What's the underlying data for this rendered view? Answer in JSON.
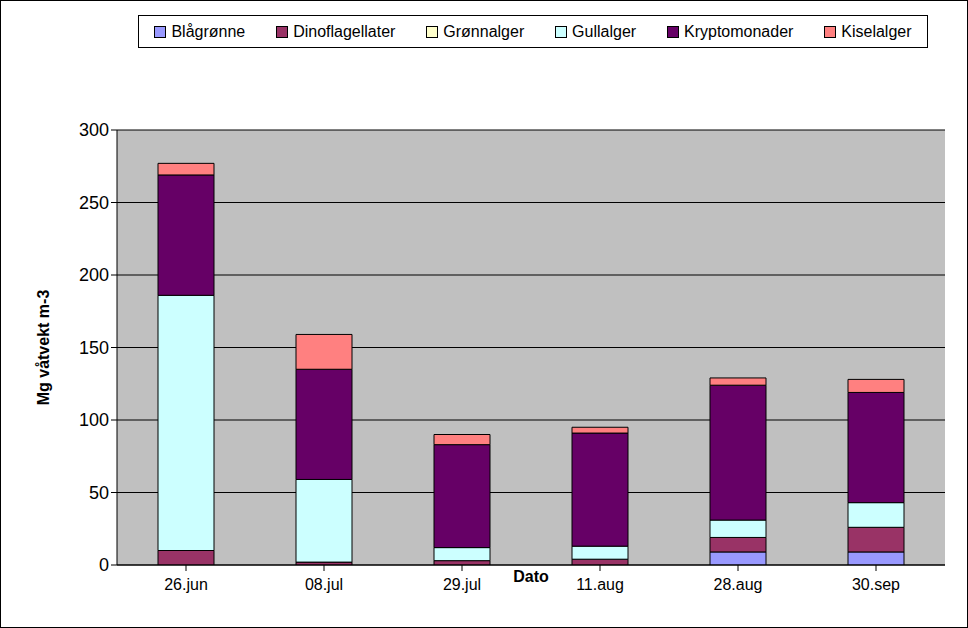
{
  "chart_data": {
    "type": "bar",
    "stacked": true,
    "grid": true,
    "legend": "top",
    "x_label": "Dato",
    "y_label": "Mg våtvekt m-3",
    "categories": [
      "26.jun",
      "08.jul",
      "29.jul",
      "11.aug",
      "28.aug",
      "30.sep"
    ],
    "ylim": [
      0,
      300
    ],
    "yticks": [
      0,
      50,
      100,
      150,
      200,
      250,
      300
    ],
    "series": [
      {
        "name": "Blågrønne",
        "color": "#9999ff",
        "values": [
          0,
          0,
          0,
          0,
          9,
          9
        ]
      },
      {
        "name": "Dinoflagellater",
        "color": "#993366",
        "values": [
          10,
          2,
          3,
          4,
          10,
          17
        ]
      },
      {
        "name": "Grønnalger",
        "color": "#ffffcc",
        "values": [
          0,
          0,
          0,
          0,
          0,
          0
        ]
      },
      {
        "name": "Gullalger",
        "color": "#ccffff",
        "values": [
          176,
          57,
          9,
          9,
          12,
          17
        ]
      },
      {
        "name": "Kryptomonader",
        "color": "#660066",
        "values": [
          83,
          76,
          71,
          78,
          93,
          76
        ]
      },
      {
        "name": "Kiselalger",
        "color": "#ff8080",
        "values": [
          8,
          24,
          7,
          4,
          5,
          9
        ]
      }
    ]
  }
}
